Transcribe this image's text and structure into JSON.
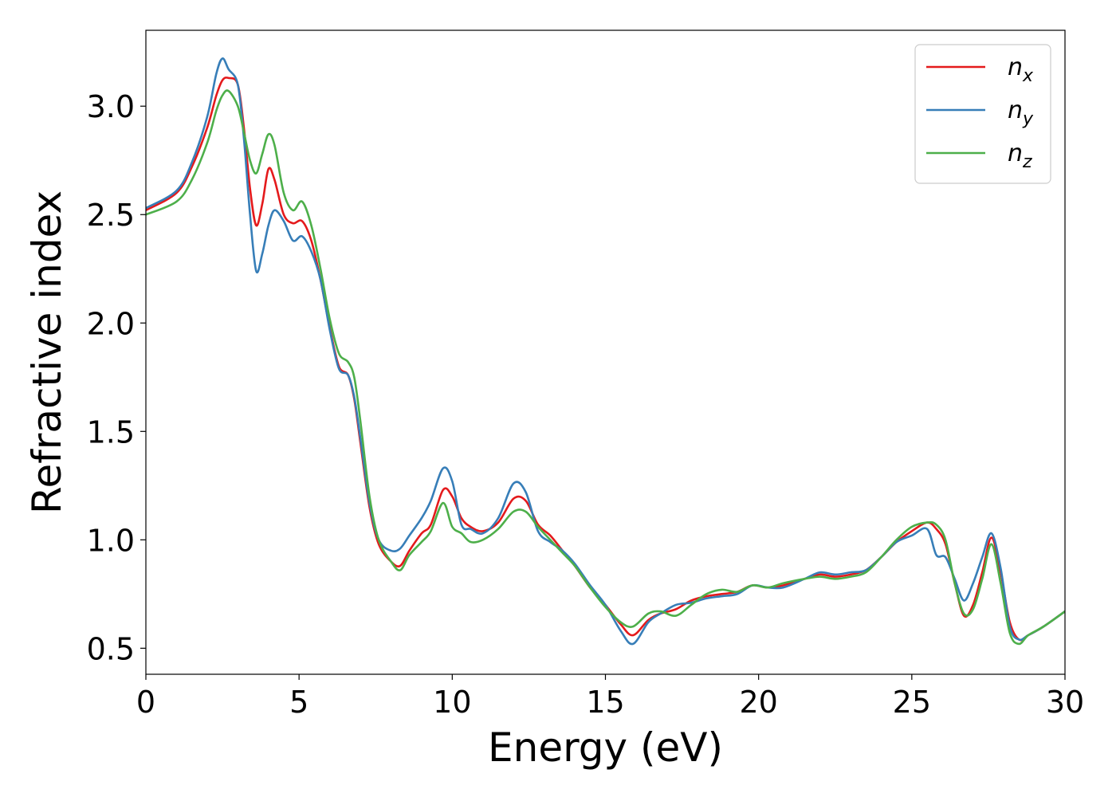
{
  "chart_data": {
    "type": "line",
    "xlabel": "Energy (eV)",
    "ylabel": "Refractive index",
    "xlim": [
      0,
      30
    ],
    "ylim": [
      0.38,
      3.35
    ],
    "xticks": [
      0,
      5,
      10,
      15,
      20,
      25,
      30
    ],
    "xtick_labels": [
      "0",
      "5",
      "10",
      "15",
      "20",
      "25",
      "30"
    ],
    "yticks": [
      0.5,
      1.0,
      1.5,
      2.0,
      2.5,
      3.0
    ],
    "ytick_labels": [
      "0.5",
      "1.0",
      "1.5",
      "2.0",
      "2.5",
      "3.0"
    ],
    "grid": false,
    "legend_position": "top-right",
    "series": [
      {
        "name": "n_x",
        "legend_base": "n",
        "legend_sub": "x",
        "color": "#e41a1c",
        "x": [
          0,
          1,
          1.5,
          2,
          2.3,
          2.5,
          2.7,
          3,
          3.2,
          3.4,
          3.6,
          3.8,
          4.0,
          4.2,
          4.5,
          4.8,
          5.1,
          5.4,
          5.7,
          6.0,
          6.3,
          6.6,
          6.8,
          7.0,
          7.3,
          7.6,
          8.0,
          8.3,
          8.6,
          9.0,
          9.3,
          9.7,
          10.0,
          10.3,
          10.6,
          11.0,
          11.5,
          12.0,
          12.4,
          12.8,
          13.2,
          13.6,
          14.0,
          14.5,
          15.0,
          15.5,
          15.9,
          16.4,
          16.8,
          17.3,
          17.8,
          18.3,
          18.8,
          19.3,
          19.8,
          20.3,
          20.8,
          21.5,
          22.0,
          22.5,
          23.0,
          23.5,
          24.0,
          24.5,
          25.0,
          25.5,
          25.8,
          26.1,
          26.4,
          26.7,
          27.0,
          27.3,
          27.6,
          27.9,
          28.2,
          28.5,
          28.8,
          29.3,
          30.0
        ],
        "y": [
          2.52,
          2.6,
          2.72,
          2.9,
          3.05,
          3.12,
          3.13,
          3.1,
          2.9,
          2.62,
          2.45,
          2.55,
          2.71,
          2.66,
          2.5,
          2.46,
          2.47,
          2.38,
          2.2,
          1.98,
          1.8,
          1.76,
          1.65,
          1.45,
          1.15,
          0.98,
          0.9,
          0.88,
          0.95,
          1.03,
          1.07,
          1.23,
          1.2,
          1.1,
          1.06,
          1.04,
          1.08,
          1.19,
          1.18,
          1.07,
          1.02,
          0.95,
          0.88,
          0.78,
          0.7,
          0.61,
          0.56,
          0.63,
          0.66,
          0.68,
          0.72,
          0.74,
          0.75,
          0.76,
          0.79,
          0.78,
          0.79,
          0.82,
          0.84,
          0.83,
          0.84,
          0.86,
          0.92,
          0.99,
          1.04,
          1.08,
          1.05,
          0.98,
          0.8,
          0.65,
          0.7,
          0.85,
          1.01,
          0.85,
          0.62,
          0.54,
          0.56,
          0.6,
          0.67
        ]
      },
      {
        "name": "n_y",
        "legend_base": "n",
        "legend_sub": "y",
        "color": "#377eb8",
        "x": [
          0,
          1,
          1.5,
          2,
          2.3,
          2.5,
          2.7,
          3,
          3.2,
          3.4,
          3.6,
          3.8,
          4.0,
          4.2,
          4.5,
          4.8,
          5.1,
          5.4,
          5.7,
          6.0,
          6.3,
          6.6,
          6.8,
          7.0,
          7.3,
          7.6,
          8.0,
          8.3,
          8.6,
          9.0,
          9.3,
          9.7,
          10.0,
          10.3,
          10.6,
          11.0,
          11.5,
          12.0,
          12.4,
          12.8,
          13.2,
          13.6,
          14.0,
          14.5,
          15.0,
          15.5,
          15.9,
          16.4,
          16.8,
          17.3,
          17.8,
          18.3,
          18.8,
          19.3,
          19.8,
          20.3,
          20.8,
          21.5,
          22.0,
          22.5,
          23.0,
          23.5,
          24.0,
          24.5,
          25.0,
          25.5,
          25.8,
          26.1,
          26.4,
          26.7,
          27.0,
          27.3,
          27.6,
          27.9,
          28.2,
          28.5,
          28.8,
          29.3,
          30.0
        ],
        "y": [
          2.53,
          2.61,
          2.74,
          2.95,
          3.15,
          3.22,
          3.17,
          3.1,
          2.85,
          2.5,
          2.24,
          2.32,
          2.45,
          2.52,
          2.47,
          2.38,
          2.4,
          2.33,
          2.2,
          1.97,
          1.79,
          1.76,
          1.66,
          1.47,
          1.17,
          1.0,
          0.95,
          0.96,
          1.02,
          1.1,
          1.18,
          1.33,
          1.27,
          1.07,
          1.05,
          1.03,
          1.1,
          1.26,
          1.22,
          1.04,
          0.99,
          0.95,
          0.89,
          0.79,
          0.7,
          0.58,
          0.52,
          0.62,
          0.66,
          0.7,
          0.71,
          0.73,
          0.74,
          0.75,
          0.79,
          0.78,
          0.78,
          0.82,
          0.85,
          0.84,
          0.85,
          0.86,
          0.92,
          0.99,
          1.02,
          1.05,
          0.93,
          0.92,
          0.82,
          0.72,
          0.8,
          0.92,
          1.03,
          0.87,
          0.6,
          0.54,
          0.56,
          0.6,
          0.67
        ]
      },
      {
        "name": "n_z",
        "legend_base": "n",
        "legend_sub": "z",
        "color": "#4daf4a",
        "x": [
          0,
          1,
          1.5,
          2,
          2.3,
          2.5,
          2.7,
          3,
          3.2,
          3.4,
          3.6,
          3.8,
          4.0,
          4.2,
          4.5,
          4.8,
          5.1,
          5.4,
          5.7,
          6.0,
          6.3,
          6.6,
          6.8,
          7.0,
          7.3,
          7.6,
          8.0,
          8.3,
          8.6,
          9.0,
          9.3,
          9.7,
          10.0,
          10.3,
          10.6,
          11.0,
          11.5,
          12.0,
          12.4,
          12.8,
          13.2,
          13.6,
          14.0,
          14.5,
          15.0,
          15.5,
          15.9,
          16.4,
          16.8,
          17.3,
          17.8,
          18.3,
          18.8,
          19.3,
          19.8,
          20.3,
          20.8,
          21.5,
          22.0,
          22.5,
          23.0,
          23.5,
          24.0,
          24.5,
          25.0,
          25.5,
          25.8,
          26.1,
          26.4,
          26.7,
          27.0,
          27.3,
          27.6,
          27.9,
          28.2,
          28.5,
          28.8,
          29.3,
          30.0
        ],
        "y": [
          2.5,
          2.56,
          2.66,
          2.83,
          2.98,
          3.05,
          3.07,
          3.0,
          2.88,
          2.75,
          2.69,
          2.78,
          2.87,
          2.82,
          2.6,
          2.52,
          2.56,
          2.45,
          2.25,
          2.02,
          1.86,
          1.82,
          1.75,
          1.55,
          1.2,
          1.0,
          0.9,
          0.86,
          0.93,
          0.99,
          1.04,
          1.17,
          1.06,
          1.03,
          0.99,
          1.0,
          1.05,
          1.13,
          1.13,
          1.06,
          1.0,
          0.94,
          0.88,
          0.78,
          0.69,
          0.62,
          0.6,
          0.66,
          0.67,
          0.65,
          0.7,
          0.75,
          0.77,
          0.76,
          0.79,
          0.78,
          0.8,
          0.82,
          0.83,
          0.82,
          0.83,
          0.85,
          0.92,
          1.0,
          1.06,
          1.08,
          1.07,
          1.0,
          0.8,
          0.66,
          0.68,
          0.82,
          0.98,
          0.8,
          0.57,
          0.52,
          0.56,
          0.6,
          0.67
        ]
      }
    ]
  }
}
